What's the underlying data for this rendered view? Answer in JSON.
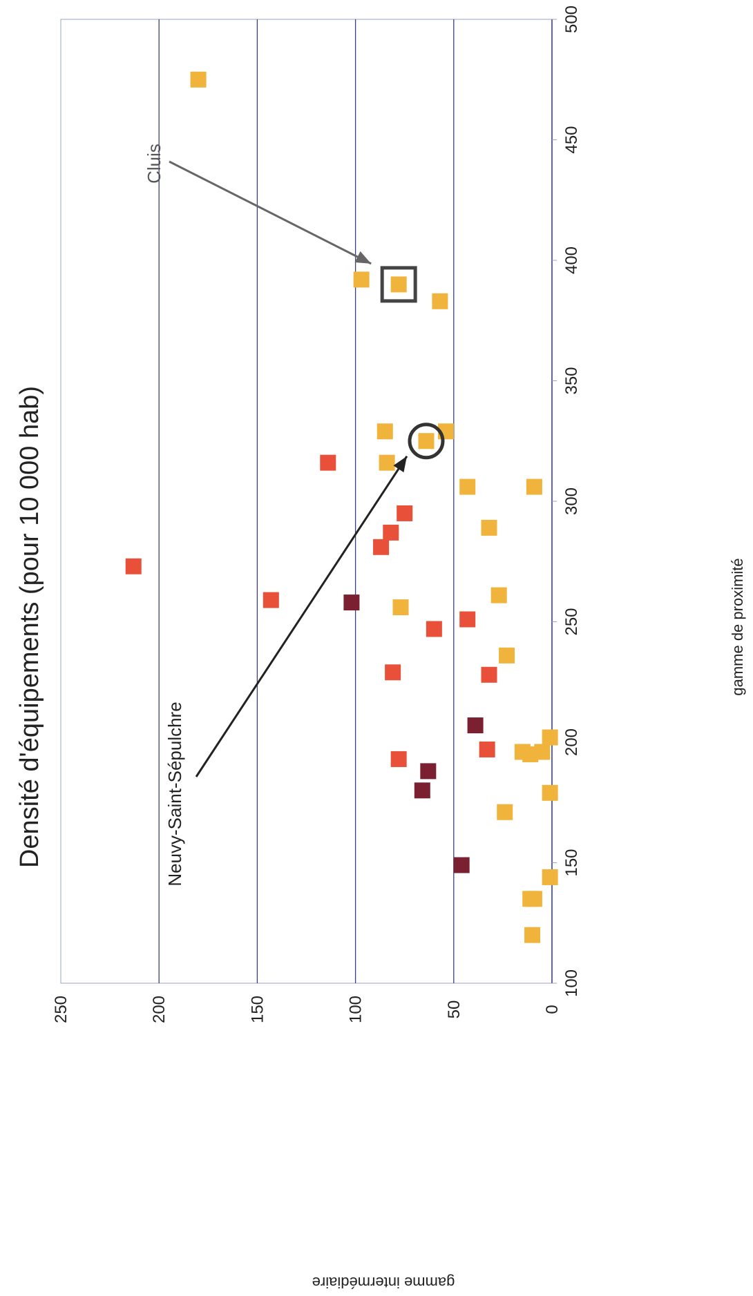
{
  "chart_data": {
    "type": "scatter",
    "orientation": "rotated-90-ccw",
    "title": "Densité d'équipements (pour 10 000 hab)",
    "xlabel": "gamme de proximité",
    "ylabel": "gamme intermédiaire",
    "xlim": [
      100,
      500
    ],
    "ylim": [
      0,
      250
    ],
    "xticks": [
      100,
      150,
      200,
      250,
      300,
      350,
      400,
      450,
      500
    ],
    "yticks": [
      0,
      50,
      100,
      150,
      200,
      250
    ],
    "grid": "horizontal",
    "colors": {
      "yellow": "#f0b43c",
      "red": "#e8503a",
      "darkred": "#7a2030",
      "grid": "#3a3f78",
      "frame": "#9aa0c8"
    },
    "points": [
      {
        "x": 475,
        "y": 180,
        "color": "yellow"
      },
      {
        "x": 392,
        "y": 97,
        "color": "yellow"
      },
      {
        "x": 390,
        "y": 78,
        "color": "yellow"
      },
      {
        "x": 383,
        "y": 57,
        "color": "yellow"
      },
      {
        "x": 329,
        "y": 85,
        "color": "yellow"
      },
      {
        "x": 329,
        "y": 54,
        "color": "yellow"
      },
      {
        "x": 325,
        "y": 64,
        "color": "yellow"
      },
      {
        "x": 316,
        "y": 114,
        "color": "red"
      },
      {
        "x": 316,
        "y": 84,
        "color": "yellow"
      },
      {
        "x": 306,
        "y": 43,
        "color": "yellow"
      },
      {
        "x": 306,
        "y": 9,
        "color": "yellow"
      },
      {
        "x": 295,
        "y": 75,
        "color": "red"
      },
      {
        "x": 289,
        "y": 32,
        "color": "yellow"
      },
      {
        "x": 287,
        "y": 82,
        "color": "red"
      },
      {
        "x": 281,
        "y": 87,
        "color": "red"
      },
      {
        "x": 273,
        "y": 213,
        "color": "red"
      },
      {
        "x": 261,
        "y": 27,
        "color": "yellow"
      },
      {
        "x": 259,
        "y": 143,
        "color": "red"
      },
      {
        "x": 258,
        "y": 102,
        "color": "darkred"
      },
      {
        "x": 256,
        "y": 77,
        "color": "yellow"
      },
      {
        "x": 251,
        "y": 43,
        "color": "red"
      },
      {
        "x": 247,
        "y": 60,
        "color": "red"
      },
      {
        "x": 236,
        "y": 23,
        "color": "yellow"
      },
      {
        "x": 229,
        "y": 81,
        "color": "red"
      },
      {
        "x": 228,
        "y": 32,
        "color": "red"
      },
      {
        "x": 207,
        "y": 39,
        "color": "darkred"
      },
      {
        "x": 202,
        "y": 1,
        "color": "yellow"
      },
      {
        "x": 197,
        "y": 33,
        "color": "red"
      },
      {
        "x": 196,
        "y": 15,
        "color": "yellow"
      },
      {
        "x": 196,
        "y": 5,
        "color": "yellow"
      },
      {
        "x": 195,
        "y": 11,
        "color": "yellow"
      },
      {
        "x": 193,
        "y": 78,
        "color": "red"
      },
      {
        "x": 188,
        "y": 63,
        "color": "darkred"
      },
      {
        "x": 180,
        "y": 66,
        "color": "darkred"
      },
      {
        "x": 179,
        "y": 1,
        "color": "yellow"
      },
      {
        "x": 171,
        "y": 24,
        "color": "yellow"
      },
      {
        "x": 149,
        "y": 46,
        "color": "darkred"
      },
      {
        "x": 144,
        "y": 1,
        "color": "yellow"
      },
      {
        "x": 135,
        "y": 11,
        "color": "yellow"
      },
      {
        "x": 135,
        "y": 9,
        "color": "yellow"
      },
      {
        "x": 120,
        "y": 10,
        "color": "yellow"
      }
    ],
    "annotations": [
      {
        "text": "Cluis",
        "target_x": 390,
        "target_y": 78,
        "marker": "square"
      },
      {
        "text": "Neuvy-Saint-Sépulchre",
        "target_x": 325,
        "target_y": 64,
        "marker": "circle"
      }
    ]
  }
}
